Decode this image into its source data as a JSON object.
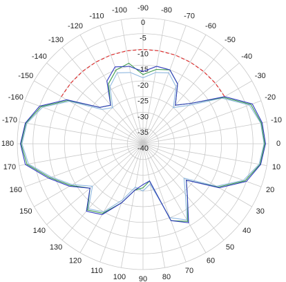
{
  "chart_data": {
    "type": "polar",
    "rlim": [
      -40,
      0
    ],
    "rticks": [
      -40,
      -35,
      -30,
      -25,
      -20,
      -15,
      -10,
      -5,
      0
    ],
    "thetaticks": [
      -170,
      -160,
      -150,
      -140,
      -130,
      -120,
      -110,
      -100,
      -90,
      -80,
      -70,
      -60,
      -50,
      -40,
      -30,
      -20,
      -10,
      0,
      10,
      20,
      30,
      40,
      50,
      60,
      70,
      80,
      90,
      100,
      110,
      120,
      130,
      140,
      150,
      160,
      170,
      180
    ],
    "theta": [
      -180,
      -170,
      -160,
      -150,
      -140,
      -130,
      -120,
      -110,
      -100,
      -90,
      -80,
      -70,
      -60,
      -50,
      -40,
      -30,
      -20,
      -10,
      0,
      10,
      20,
      30,
      40,
      50,
      60,
      70,
      80,
      90,
      100,
      110,
      120,
      130,
      140,
      150,
      160,
      170
    ],
    "series": [
      {
        "color": "#8fb8e0",
        "values": [
          -1.5,
          -2.5,
          -6,
          -13,
          -23,
          -25,
          -19,
          -16,
          -17,
          -19,
          -17,
          -16,
          -19,
          -25,
          -21,
          -11,
          -4,
          -2,
          -1.5,
          -2.5,
          -6,
          -13,
          -23,
          -19,
          -12,
          -15,
          -27,
          -25,
          -26,
          -21,
          -15,
          -13,
          -19,
          -14,
          -9,
          -3
        ]
      },
      {
        "color": "#3a9a4a",
        "values": [
          -1.2,
          -2.2,
          -5.5,
          -12.5,
          -22,
          -24,
          -18,
          -15,
          -14,
          -18,
          -16,
          -15,
          -18,
          -24,
          -20,
          -10.5,
          -3.5,
          -1.8,
          -1.3,
          -2.2,
          -5.5,
          -12.5,
          -22,
          -18,
          -11.5,
          -14,
          -28,
          -26,
          -25,
          -20,
          -14.5,
          -12.5,
          -18,
          -13.5,
          -8.5,
          -2.5
        ]
      },
      {
        "color": "#2f3bbf",
        "values": [
          -1,
          -2,
          -5,
          -12,
          -22,
          -24,
          -17,
          -14,
          -15,
          -17,
          -15,
          -15,
          -18,
          -24,
          -20,
          -10,
          -3,
          -1.5,
          -1,
          -2,
          -5,
          -12,
          -22,
          -18,
          -11,
          -14,
          -28,
          -27,
          -25,
          -20,
          -14,
          -12,
          -18,
          -13,
          -8,
          -2
        ]
      },
      {
        "color": "#e03030",
        "dashed": true,
        "theta": [
          -150,
          -140,
          -130,
          -120,
          -110,
          -100,
          -90,
          -80,
          -70,
          -60,
          -50,
          -40,
          -30
        ],
        "values": [
          -10,
          -10,
          -10,
          -10,
          -10,
          -10,
          -10,
          -10,
          -10,
          -10,
          -10,
          -10,
          -10
        ]
      }
    ]
  }
}
